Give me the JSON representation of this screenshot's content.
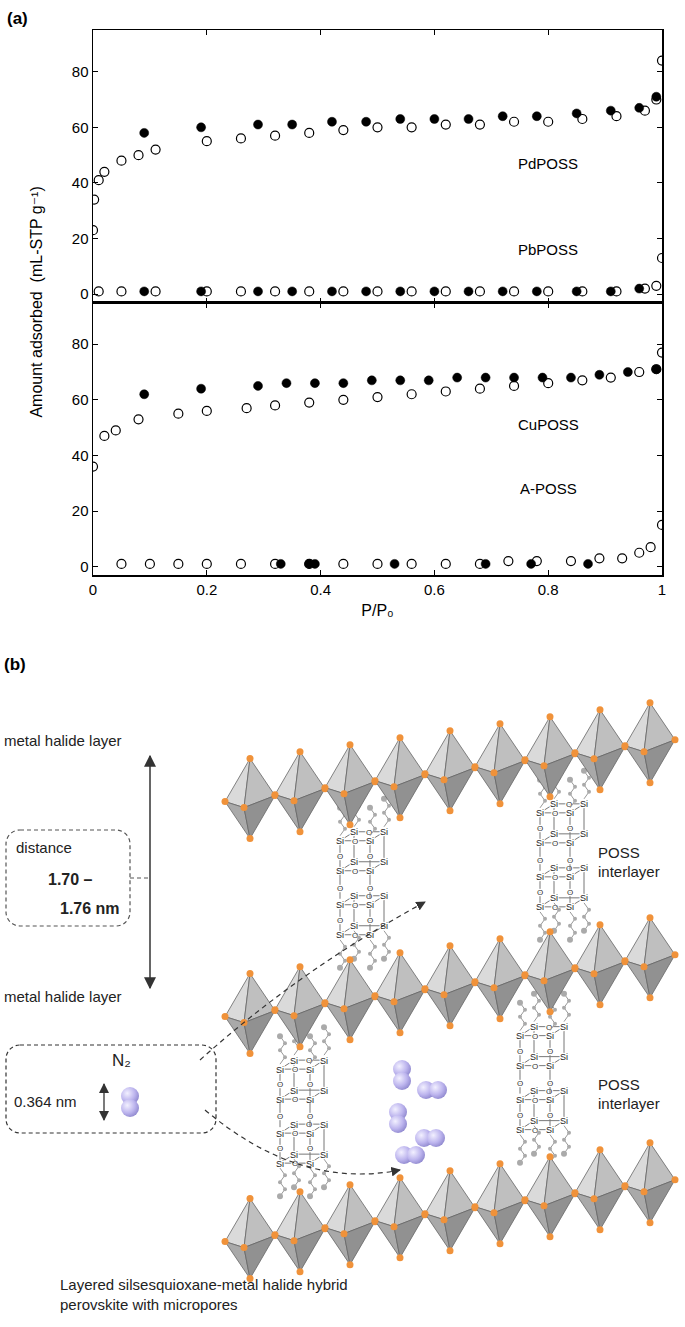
{
  "panel_labels": [
    "(a)",
    "(b)"
  ],
  "chart_data": [
    {
      "type": "scatter",
      "xlim": [
        0,
        1
      ],
      "xticks": [
        0,
        0.2,
        0.4,
        0.6,
        0.8,
        1
      ],
      "ylim": [
        -3,
        95
      ],
      "yticks": [
        0,
        20,
        40,
        60,
        80
      ],
      "grid": false,
      "tick_labels": "y",
      "series": [
        {
          "name": "PdPOSS",
          "marker": "circle",
          "color": "#000000",
          "x": [
            0.09,
            0.19,
            0.29,
            0.35,
            0.42,
            0.48,
            0.54,
            0.6,
            0.66,
            0.72,
            0.78,
            0.85,
            0.91,
            0.96,
            0.99
          ],
          "values": [
            58,
            60,
            61,
            61,
            62,
            62,
            63,
            63,
            63,
            64,
            64,
            65,
            66,
            67,
            71
          ]
        },
        {
          "name": "PdPOSS",
          "marker": "circle-open",
          "color": "#000000",
          "x": [
            0.0,
            0.002,
            0.01,
            0.02,
            0.05,
            0.08,
            0.11,
            0.2,
            0.26,
            0.32,
            0.38,
            0.44,
            0.5,
            0.56,
            0.62,
            0.68,
            0.74,
            0.8,
            0.86,
            0.92,
            0.97,
            0.99,
            1.0
          ],
          "values": [
            23,
            34,
            41,
            44,
            48,
            50,
            52,
            55,
            56,
            57,
            58,
            59,
            60,
            60,
            61,
            61,
            62,
            62,
            63,
            64,
            66,
            70,
            84
          ]
        },
        {
          "name": "PbPOSS",
          "marker": "circle",
          "color": "#000000",
          "x": [
            0.09,
            0.19,
            0.29,
            0.35,
            0.42,
            0.48,
            0.54,
            0.6,
            0.66,
            0.72,
            0.78,
            0.85,
            0.91,
            0.96
          ],
          "values": [
            1,
            1,
            1,
            1,
            1,
            1,
            1,
            1,
            1,
            1,
            1,
            1,
            1,
            2
          ]
        },
        {
          "name": "PbPOSS",
          "marker": "circle-open",
          "color": "#000000",
          "x": [
            0.01,
            0.05,
            0.11,
            0.2,
            0.26,
            0.32,
            0.38,
            0.44,
            0.5,
            0.56,
            0.62,
            0.68,
            0.74,
            0.8,
            0.86,
            0.92,
            0.97,
            0.99,
            1.0
          ],
          "values": [
            1,
            1,
            1,
            1,
            1,
            1,
            1,
            1,
            1,
            1,
            1,
            1,
            1,
            1,
            1,
            1,
            2,
            3,
            13
          ]
        }
      ],
      "annotations": [
        {
          "text": "PdPOSS",
          "x": 0.8,
          "y": 47
        },
        {
          "text": "PbPOSS",
          "x": 0.8,
          "y": 16
        }
      ]
    },
    {
      "type": "scatter",
      "x_label": "P/P₀",
      "y_label": "Amount adsorbed  (mL-STP g⁻¹)",
      "xlim": [
        0,
        1
      ],
      "xticks": [
        0,
        0.2,
        0.4,
        0.6,
        0.8,
        1
      ],
      "ylim": [
        -3,
        95
      ],
      "yticks": [
        0,
        20,
        40,
        60,
        80
      ],
      "grid": false,
      "series": [
        {
          "name": "CuPOSS",
          "marker": "circle",
          "color": "#000000",
          "x": [
            0.09,
            0.19,
            0.29,
            0.34,
            0.39,
            0.44,
            0.49,
            0.54,
            0.59,
            0.64,
            0.69,
            0.74,
            0.79,
            0.84,
            0.89,
            0.94,
            0.99
          ],
          "values": [
            62,
            64,
            65,
            66,
            66,
            66,
            67,
            67,
            67,
            68,
            68,
            68,
            68,
            68,
            69,
            70,
            71
          ]
        },
        {
          "name": "CuPOSS",
          "marker": "circle-open",
          "color": "#000000",
          "x": [
            0.0,
            0.02,
            0.04,
            0.08,
            0.15,
            0.2,
            0.27,
            0.32,
            0.38,
            0.44,
            0.5,
            0.56,
            0.62,
            0.68,
            0.74,
            0.8,
            0.86,
            0.91,
            0.96,
            0.99,
            1.0
          ],
          "values": [
            36,
            47,
            49,
            53,
            55,
            56,
            57,
            58,
            59,
            60,
            61,
            62,
            63,
            64,
            65,
            66,
            67,
            68,
            70,
            71,
            77
          ]
        },
        {
          "name": "A-POSS",
          "marker": "circle",
          "color": "#000000",
          "x": [
            0.33,
            0.38,
            0.39,
            0.53,
            0.69,
            0.77,
            0.87
          ],
          "values": [
            1,
            1,
            1,
            1,
            1,
            1,
            1
          ]
        },
        {
          "name": "A-POSS",
          "marker": "circle-open",
          "color": "#000000",
          "x": [
            0.05,
            0.1,
            0.15,
            0.2,
            0.26,
            0.32,
            0.38,
            0.44,
            0.5,
            0.56,
            0.62,
            0.68,
            0.73,
            0.78,
            0.84,
            0.89,
            0.93,
            0.96,
            0.98,
            1.0
          ],
          "values": [
            1,
            1,
            1,
            1,
            1,
            1,
            1,
            1,
            1,
            1,
            1,
            1,
            2,
            2,
            2,
            3,
            3,
            5,
            7,
            15
          ]
        }
      ],
      "annotations": [
        {
          "text": "CuPOSS",
          "x": 0.8,
          "y": 51
        },
        {
          "text": "A-POSS",
          "x": 0.8,
          "y": 28
        }
      ]
    }
  ],
  "diagram": {
    "metal_halide_layer_label": "metal halide layer",
    "distance_box": [
      "distance",
      "1.70 –",
      "1.76 nm"
    ],
    "poss_interlayer_label": [
      "POSS",
      "interlayer"
    ],
    "molecule": {
      "label": "N₂",
      "size": "0.364 nm"
    },
    "cage_atoms": {
      "silicon": "Si",
      "oxygen": "O"
    },
    "caption": [
      "Layered silsesquioxane-metal halide hybrid",
      "perovskite with micropores"
    ]
  }
}
